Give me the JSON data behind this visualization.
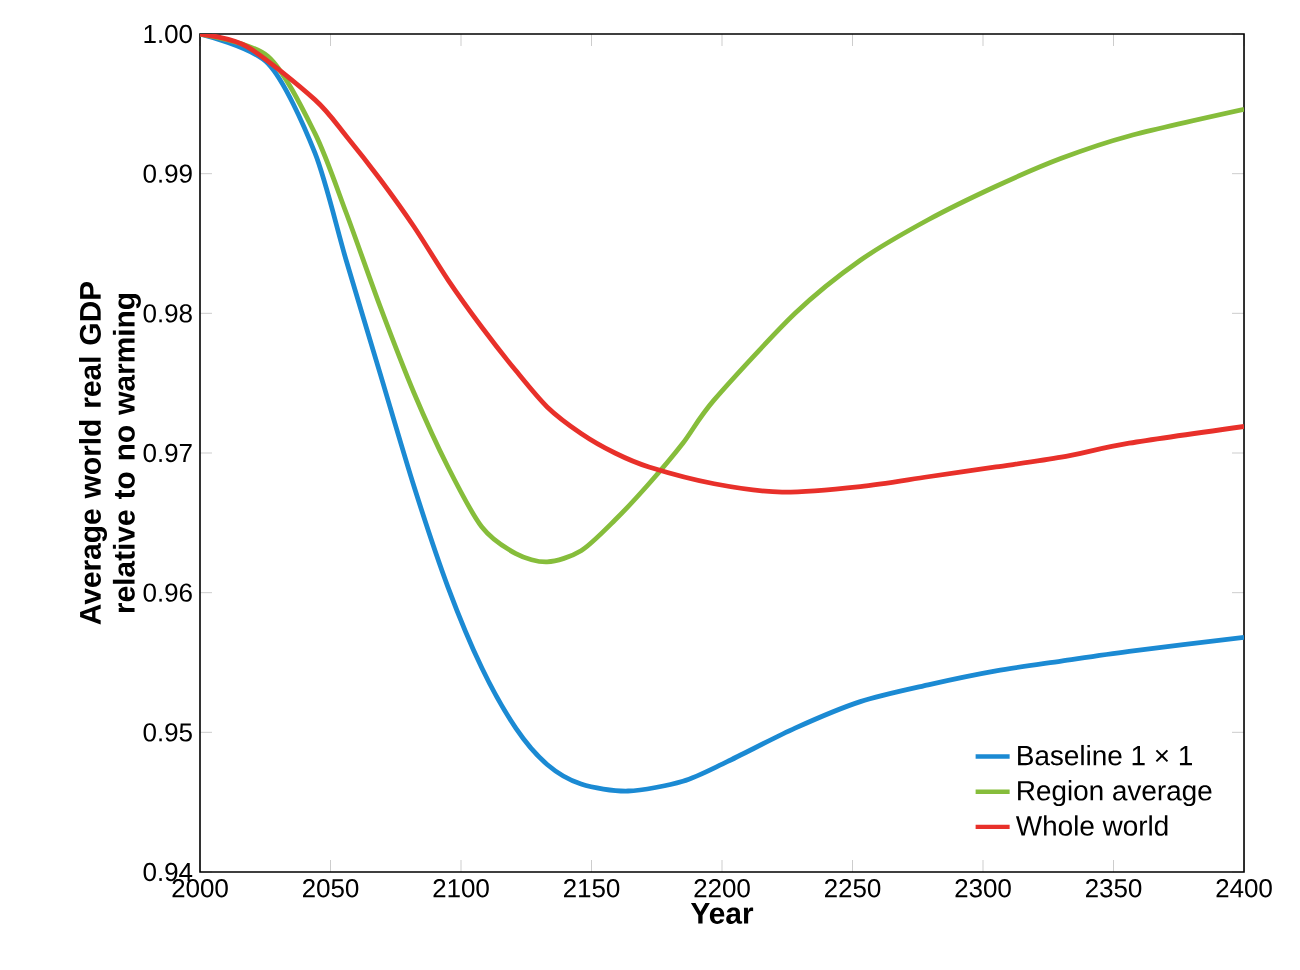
{
  "chart_data": {
    "type": "line",
    "xlabel": "Year",
    "ylabel": "Average world real GDP relative to no warming",
    "xlim": [
      2000,
      2400
    ],
    "xticks": [
      2000,
      2050,
      2100,
      2150,
      2200,
      2250,
      2300,
      2350,
      2400
    ],
    "ylim": [
      0.94,
      1.0
    ],
    "yticks": [
      0.94,
      0.95,
      0.96,
      0.97,
      0.98,
      0.99,
      {
        "value": 1.0,
        "label": "1.00"
      }
    ],
    "legend": "bottom right",
    "grid": false,
    "series": [
      {
        "name": "Baseline 1 × 1",
        "color": "#1b8ad3",
        "x": [
          2000,
          2026,
          2044,
          2056,
          2069,
          2082,
          2095,
          2108,
          2121,
          2133,
          2146,
          2164,
          2185,
          2202,
          2228,
          2253,
          2279,
          2305,
          2330,
          2356,
          2400
        ],
        "values": [
          1.0,
          0.9979,
          0.9915,
          0.9838,
          0.9757,
          0.9676,
          0.9604,
          0.9546,
          0.9503,
          0.9477,
          0.9463,
          0.9458,
          0.9465,
          0.9479,
          0.9503,
          0.9522,
          0.9534,
          0.9544,
          0.9551,
          0.9558,
          0.9568
        ]
      },
      {
        "name": "Region average",
        "color": "#86bd3b",
        "x": [
          2000,
          2026,
          2044,
          2056,
          2069,
          2082,
          2095,
          2108,
          2121,
          2133,
          2146,
          2159,
          2172,
          2185,
          2197,
          2228,
          2253,
          2279,
          2305,
          2330,
          2356,
          2400
        ],
        "values": [
          1.0,
          0.9984,
          0.9929,
          0.9872,
          0.9805,
          0.9743,
          0.969,
          0.9647,
          0.9628,
          0.9622,
          0.963,
          0.9652,
          0.9678,
          0.9707,
          0.9738,
          0.98,
          0.9838,
          0.9867,
          0.9891,
          0.9911,
          0.9927,
          0.9946
        ]
      },
      {
        "name": "Whole world",
        "color": "#e8302a",
        "x": [
          2000,
          2018,
          2044,
          2056,
          2069,
          2082,
          2095,
          2108,
          2121,
          2133,
          2146,
          2159,
          2172,
          2197,
          2223,
          2253,
          2279,
          2305,
          2330,
          2356,
          2400
        ],
        "values": [
          1.0,
          0.9991,
          0.9953,
          0.9927,
          0.9896,
          0.9862,
          0.9824,
          0.979,
          0.9759,
          0.9733,
          0.9714,
          0.97,
          0.969,
          0.9678,
          0.9672,
          0.9676,
          0.9683,
          0.969,
          0.9697,
          0.9707,
          0.9719
        ]
      }
    ]
  }
}
